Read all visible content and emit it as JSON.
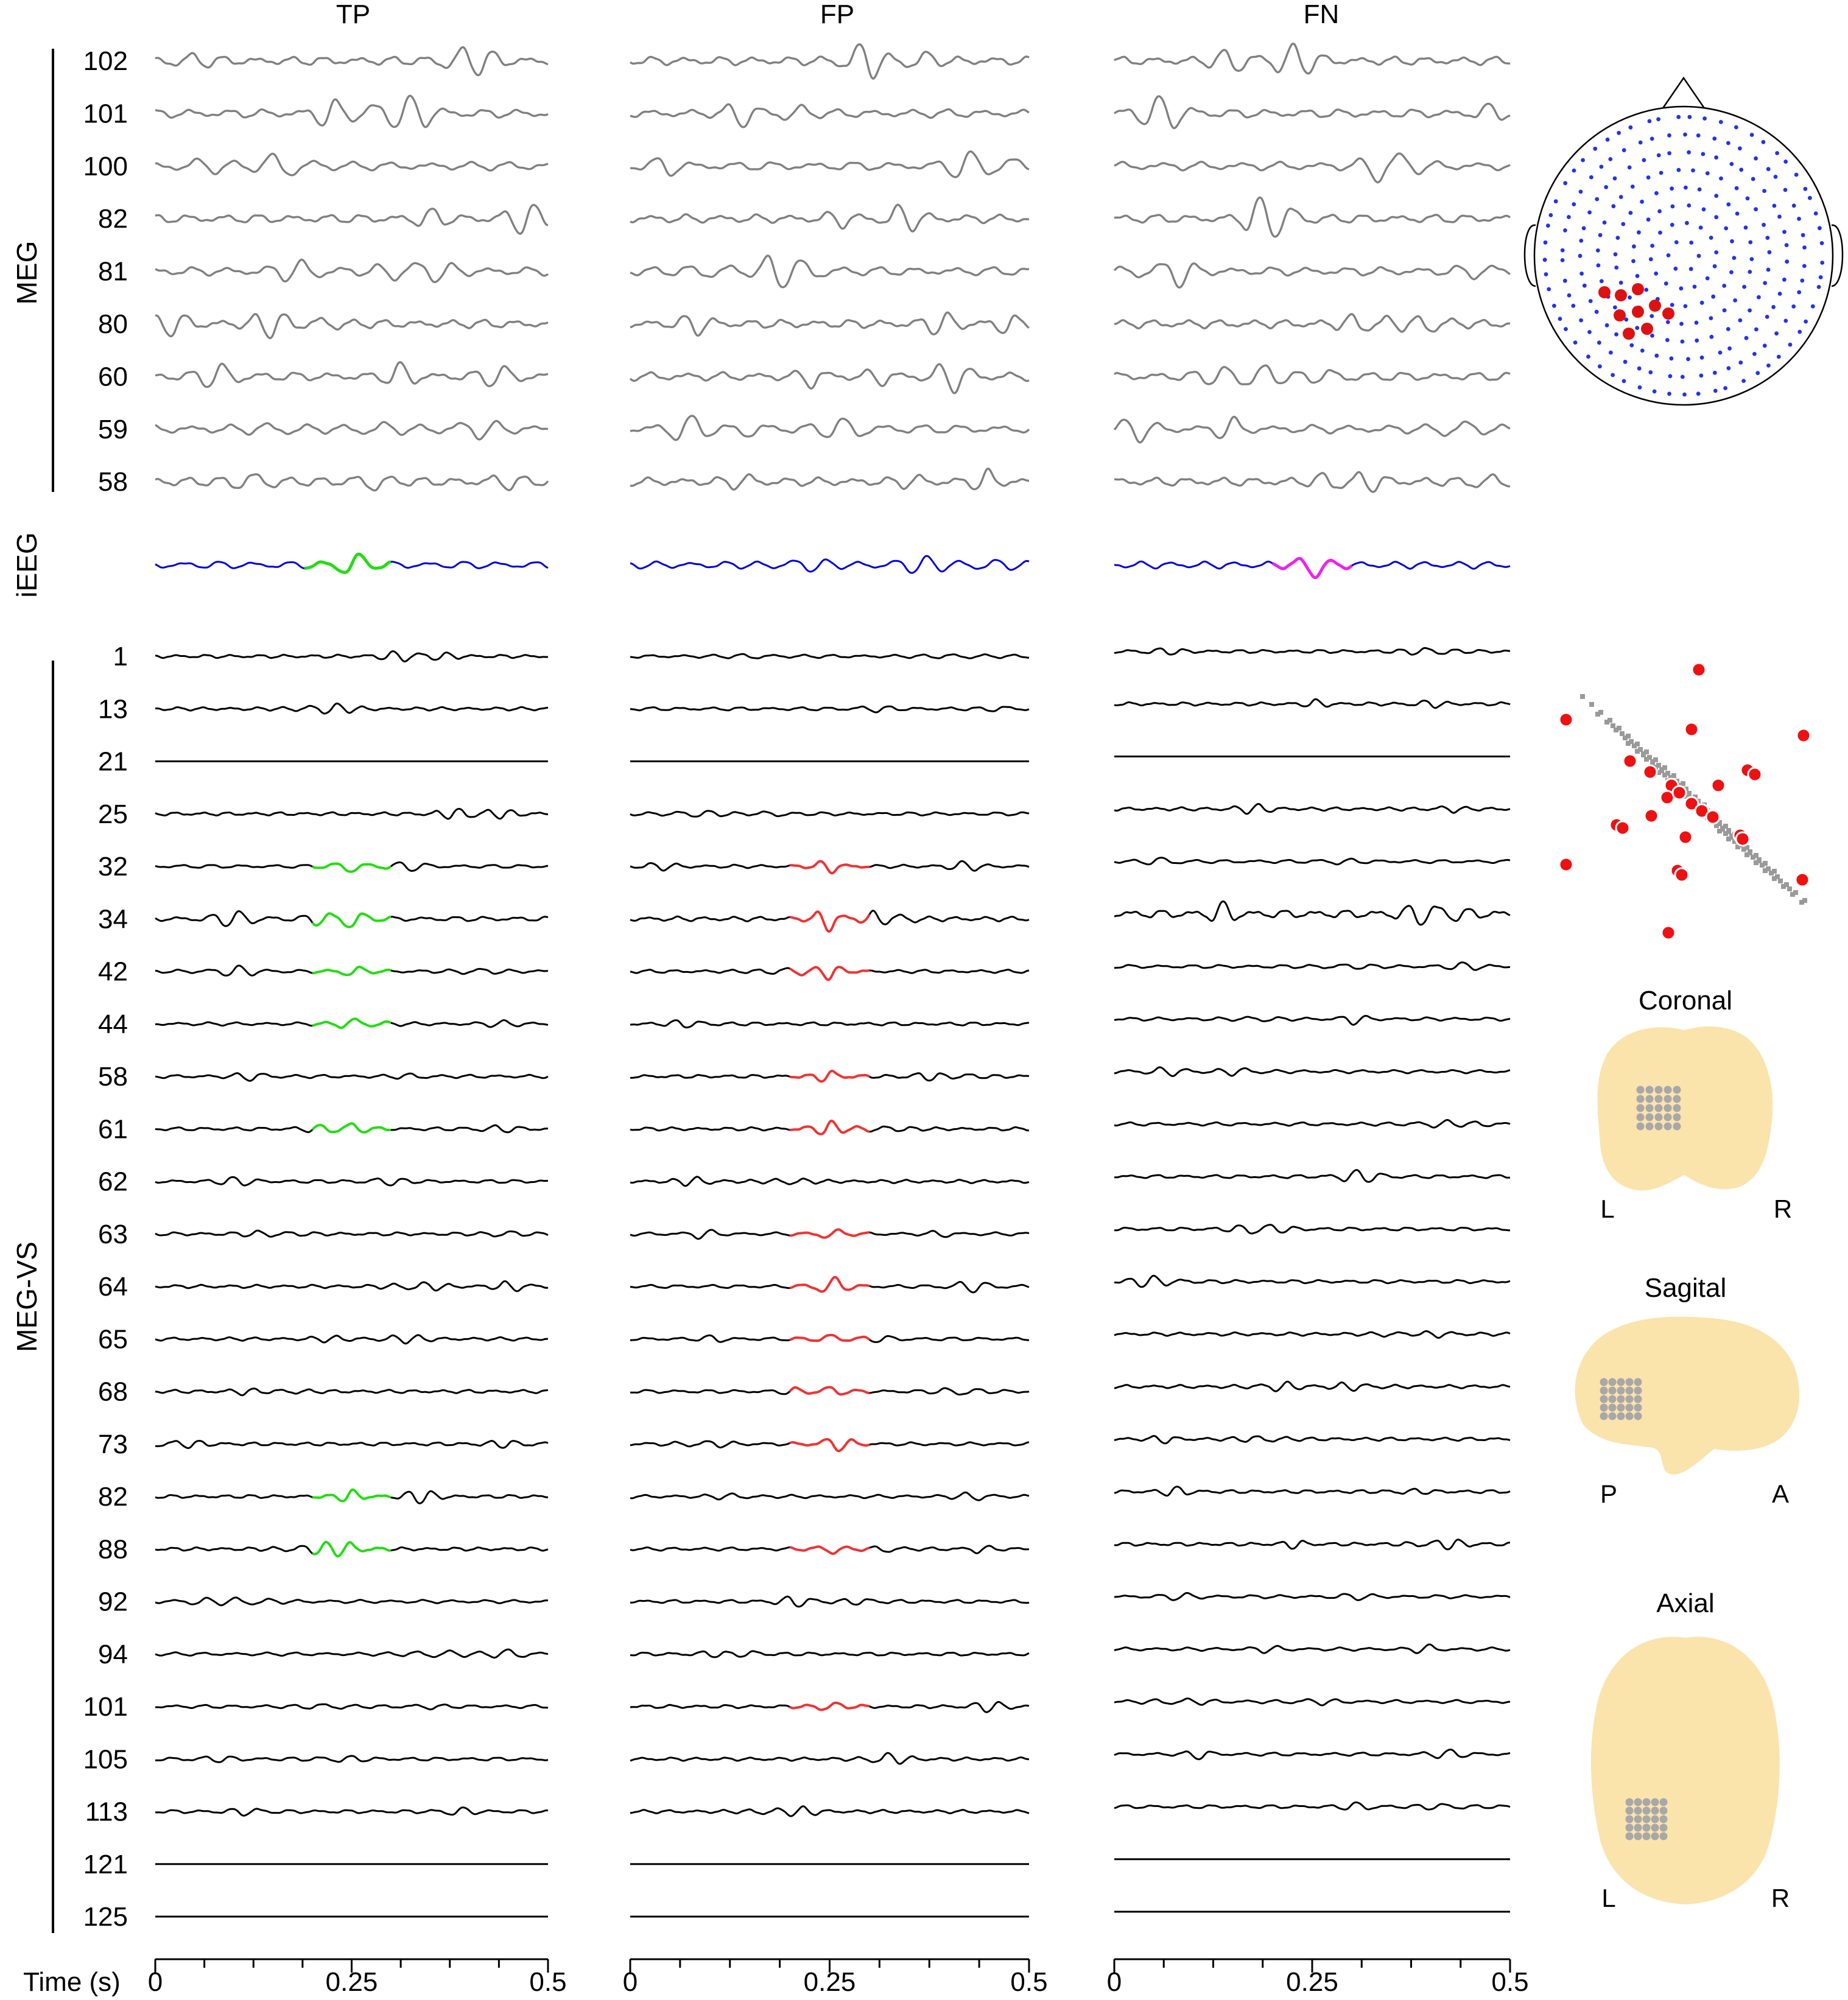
{
  "chart_data": {
    "type": "line",
    "columns": [
      "TP",
      "FP",
      "FN"
    ],
    "groups": {
      "meg": "MEG",
      "ieeg": "iEEG",
      "megvs": "MEG-VS"
    },
    "meg_channels": [
      "102",
      "101",
      "100",
      "82",
      "81",
      "80",
      "60",
      "59",
      "58"
    ],
    "megvs_channels": [
      "1",
      "13",
      "21",
      "25",
      "32",
      "34",
      "42",
      "44",
      "58",
      "61",
      "62",
      "63",
      "64",
      "65",
      "68",
      "73",
      "82",
      "88",
      "92",
      "94",
      "101",
      "105",
      "113",
      "121",
      "125"
    ],
    "xlabel": "Time (s)",
    "xlim": [
      0,
      0.5
    ],
    "xticks": [
      "0",
      "0.25",
      "0.5"
    ],
    "highlight_window_s": {
      "TP": [
        0.2,
        0.3
      ],
      "FP": [
        0.2,
        0.3
      ],
      "FN": [
        0.2,
        0.3
      ]
    },
    "highlighted_vs_channels": {
      "TP": [
        "32",
        "34",
        "42",
        "44",
        "61",
        "82",
        "88"
      ],
      "FP": [
        "32",
        "34",
        "42",
        "58",
        "61",
        "63",
        "64",
        "65",
        "68",
        "73",
        "88",
        "101"
      ],
      "FN": []
    },
    "ieeg_event": {
      "TP": "green",
      "FP": "none",
      "FN": "magenta"
    },
    "colors": {
      "meg": "#808080",
      "ieeg": "#0000e0",
      "tp": "#22dd11",
      "fp": "#ee3333",
      "fn": "#ee22ee",
      "vs": "#000000"
    },
    "insets": {
      "coronal": {
        "title": "Coronal",
        "left": "L",
        "right": "R"
      },
      "sagittal": {
        "title": "Sagital",
        "left": "P",
        "right": "A"
      },
      "axial": {
        "title": "Axial",
        "left": "L",
        "right": "R"
      }
    }
  }
}
